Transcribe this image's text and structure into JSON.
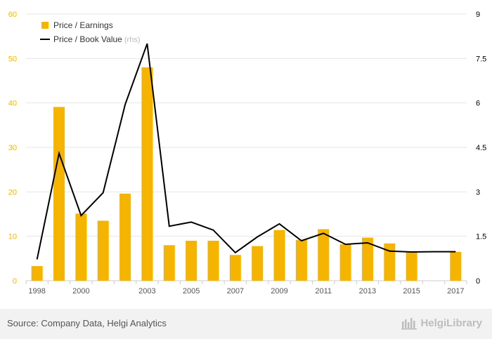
{
  "chart_data": {
    "type": "bar",
    "categories": [
      "1998",
      "1999",
      "2000",
      "2001",
      "2002",
      "2003",
      "2004",
      "2005",
      "2006",
      "2007",
      "2008",
      "2009",
      "2010",
      "2011",
      "2012",
      "2013",
      "2014",
      "2015",
      "2016",
      "2017"
    ],
    "x_tick_labels": [
      "1998",
      "2000",
      "2003",
      "2005",
      "2007",
      "2009",
      "2011",
      "2013",
      "2015",
      "2017"
    ],
    "series": [
      {
        "name": "Price / Earnings",
        "kind": "bar",
        "axis": "left",
        "color": "#f5b400",
        "values": [
          3.3,
          39.1,
          15.1,
          13.5,
          19.6,
          48.0,
          8.0,
          9.0,
          9.0,
          5.8,
          7.8,
          11.4,
          9.2,
          11.6,
          8.2,
          9.7,
          8.4,
          6.5,
          0,
          6.5
        ]
      },
      {
        "name": "Price / Book Value",
        "kind": "line",
        "axis": "right",
        "color": "#000000",
        "values": [
          0.72,
          4.3,
          2.2,
          2.97,
          5.95,
          8.0,
          1.84,
          1.98,
          1.71,
          0.95,
          1.48,
          1.92,
          1.35,
          1.6,
          1.23,
          1.28,
          1.0,
          0.97,
          0.98,
          0.98
        ]
      }
    ],
    "y_left": {
      "ticks": [
        "0",
        "10",
        "20",
        "30",
        "40",
        "50",
        "60"
      ],
      "min": 0,
      "max": 60,
      "color": "#f5b400"
    },
    "y_right": {
      "ticks": [
        "0",
        "1.5",
        "3",
        "4.5",
        "6",
        "7.5",
        "9"
      ],
      "min": 0,
      "max": 9,
      "color": "#000000"
    },
    "legend": {
      "placement": "top-left",
      "items": [
        {
          "label": "Price / Earnings",
          "suffix": ""
        },
        {
          "label": "Price / Book Value",
          "suffix": "(rhs)"
        }
      ]
    },
    "grid": true
  },
  "footer": {
    "source": "Source: Company Data, Helgi Analytics",
    "brand": "HelgiLibrary"
  }
}
